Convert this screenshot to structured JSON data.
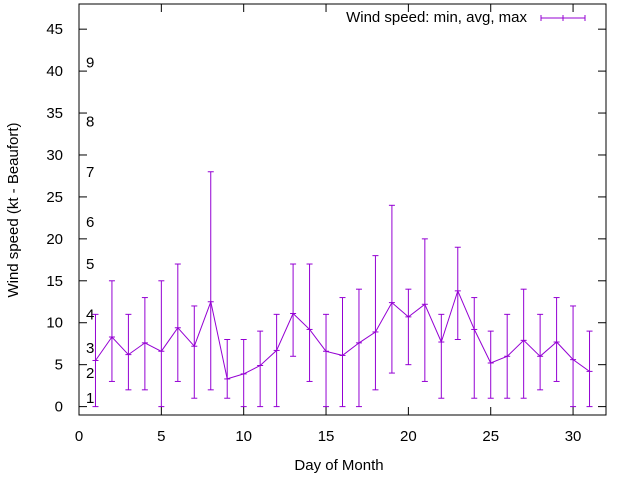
{
  "chart_data": {
    "type": "line",
    "title": "",
    "xlabel": "Day of Month",
    "ylabel": "Wind speed (kt - Beaufort)",
    "xlim": [
      0,
      32
    ],
    "ylim": [
      -1,
      48
    ],
    "xticks": [
      0,
      5,
      10,
      15,
      20,
      25,
      30
    ],
    "yticks": [
      0,
      5,
      10,
      15,
      20,
      25,
      30,
      35,
      40,
      45
    ],
    "beaufort_labels": [
      {
        "label": "1",
        "value": 1
      },
      {
        "label": "2",
        "value": 4
      },
      {
        "label": "3",
        "value": 7
      },
      {
        "label": "4",
        "value": 11
      },
      {
        "label": "5",
        "value": 17
      },
      {
        "label": "6",
        "value": 22
      },
      {
        "label": "7",
        "value": 28
      },
      {
        "label": "8",
        "value": 34
      },
      {
        "label": "9",
        "value": 41
      }
    ],
    "grid": false,
    "legend": "top-right",
    "series": [
      {
        "name": "Wind speed: min, avg, max",
        "color": "#9400d3",
        "x": [
          1,
          2,
          3,
          4,
          5,
          6,
          7,
          8,
          9,
          10,
          11,
          12,
          13,
          14,
          15,
          16,
          17,
          18,
          19,
          20,
          21,
          22,
          23,
          24,
          25,
          26,
          27,
          28,
          29,
          30,
          31
        ],
        "avg": [
          5.5,
          8.3,
          6.2,
          7.6,
          6.6,
          9.4,
          7.2,
          12.5,
          3.3,
          3.9,
          4.9,
          6.7,
          11.1,
          9.2,
          6.6,
          6.1,
          7.6,
          8.9,
          12.4,
          10.7,
          12.2,
          7.7,
          13.8,
          9.2,
          5.2,
          6.0,
          7.9,
          6.0,
          7.7,
          5.6,
          4.2
        ],
        "min": [
          0,
          3,
          2,
          2,
          0,
          3,
          1,
          2,
          1,
          0,
          0,
          0,
          6,
          3,
          0,
          0,
          0,
          2,
          4,
          5,
          3,
          1,
          8,
          1,
          1,
          1,
          1,
          2,
          3,
          0,
          0
        ],
        "max": [
          11,
          15,
          11,
          13,
          15,
          17,
          12,
          28,
          8,
          8,
          9,
          11,
          17,
          17,
          11,
          13,
          14,
          18,
          24,
          14,
          20,
          11,
          19,
          13,
          9,
          11,
          14,
          11,
          13,
          12,
          9
        ]
      }
    ]
  }
}
